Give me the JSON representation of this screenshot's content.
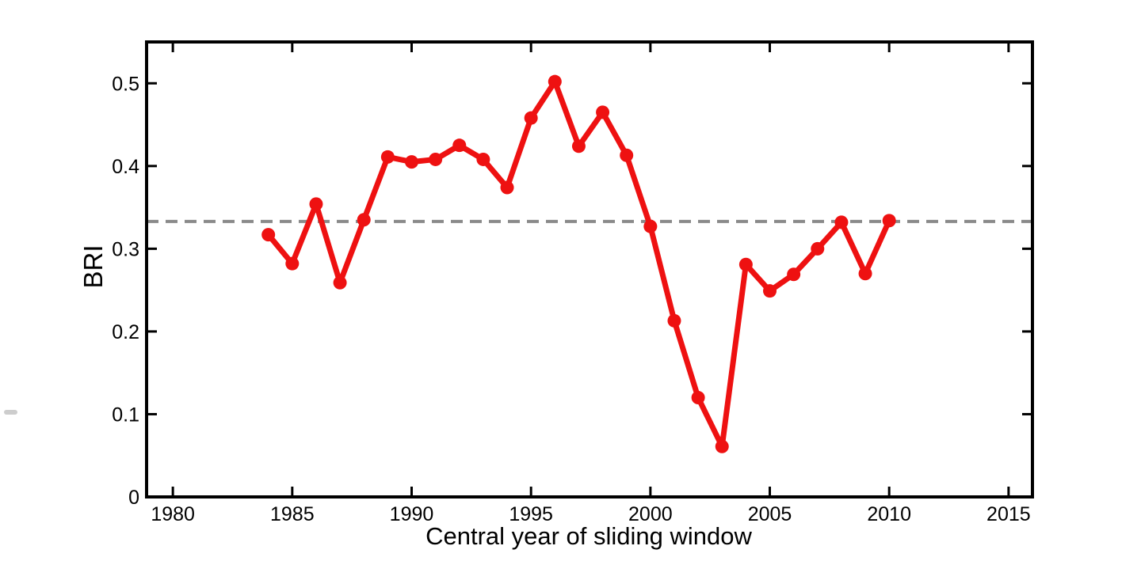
{
  "chart_data": {
    "type": "line",
    "title": "",
    "xlabel": "Central year of sliding window",
    "ylabel": "BRI",
    "xlim": [
      1978.9,
      2016.0
    ],
    "ylim": [
      0,
      0.55
    ],
    "xticks": [
      1980,
      1985,
      1990,
      1995,
      2000,
      2005,
      2010,
      2015
    ],
    "xtick_labels": [
      "1980",
      "1985",
      "1990",
      "1995",
      "2000",
      "2005",
      "2010",
      "2015"
    ],
    "yticks": [
      0,
      0.1,
      0.2,
      0.3,
      0.4,
      0.5
    ],
    "ytick_labels": [
      "0",
      "0.1",
      "0.2",
      "0.3",
      "0.4",
      "0.5"
    ],
    "grid": false,
    "legend": "none",
    "box": true,
    "tick_direction": "in",
    "x": [
      1984,
      1985,
      1986,
      1987,
      1988,
      1989,
      1990,
      1991,
      1992,
      1993,
      1994,
      1995,
      1996,
      1997,
      1998,
      1999,
      2000,
      2001,
      2002,
      2003,
      2004,
      2005,
      2006,
      2007,
      2008,
      2009,
      2010
    ],
    "series": [
      {
        "name": "BRI",
        "color": "#ee1111",
        "marker": "circle",
        "values": [
          0.317,
          0.282,
          0.354,
          0.259,
          0.335,
          0.411,
          0.405,
          0.408,
          0.425,
          0.408,
          0.374,
          0.458,
          0.502,
          0.424,
          0.465,
          0.413,
          0.327,
          0.213,
          0.12,
          0.061,
          0.281,
          0.249,
          0.269,
          0.3,
          0.332,
          0.27,
          0.334
        ]
      }
    ],
    "reference_line": {
      "value": 0.333,
      "orientation": "horizontal",
      "style": "dashed",
      "color": "#8a8a8a"
    },
    "colors": {
      "axis": "#000000",
      "text": "#000000",
      "background": "#ffffff"
    }
  }
}
